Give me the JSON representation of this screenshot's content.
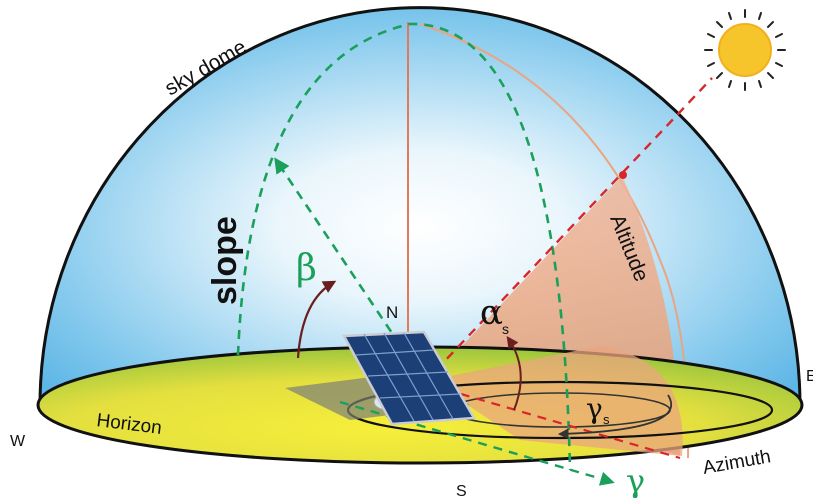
{
  "labels": {
    "sky_dome": "sky dome",
    "slope": "slope",
    "beta": "β",
    "north": "N",
    "south": "S",
    "west": "W",
    "east": "E",
    "alpha": "α",
    "alpha_sub": "s",
    "gamma_s": "γ",
    "gamma_s_sub": "s",
    "gamma": "γ",
    "altitude": "Altitude",
    "horizon": "Horizon",
    "azimuth": "Azimuth"
  },
  "icons": {
    "sun": "sun-icon",
    "panel": "solar-panel-icon"
  },
  "colors": {
    "sky_blue": "#5fb8e6",
    "ground_yellow": "#e6e23a",
    "green_dashed": "#1aa05a",
    "red_dashed": "#d9262b",
    "altitude_fill": "#e9a57f",
    "sun": "#f6c52b",
    "panel_blue": "#1d3f77"
  }
}
